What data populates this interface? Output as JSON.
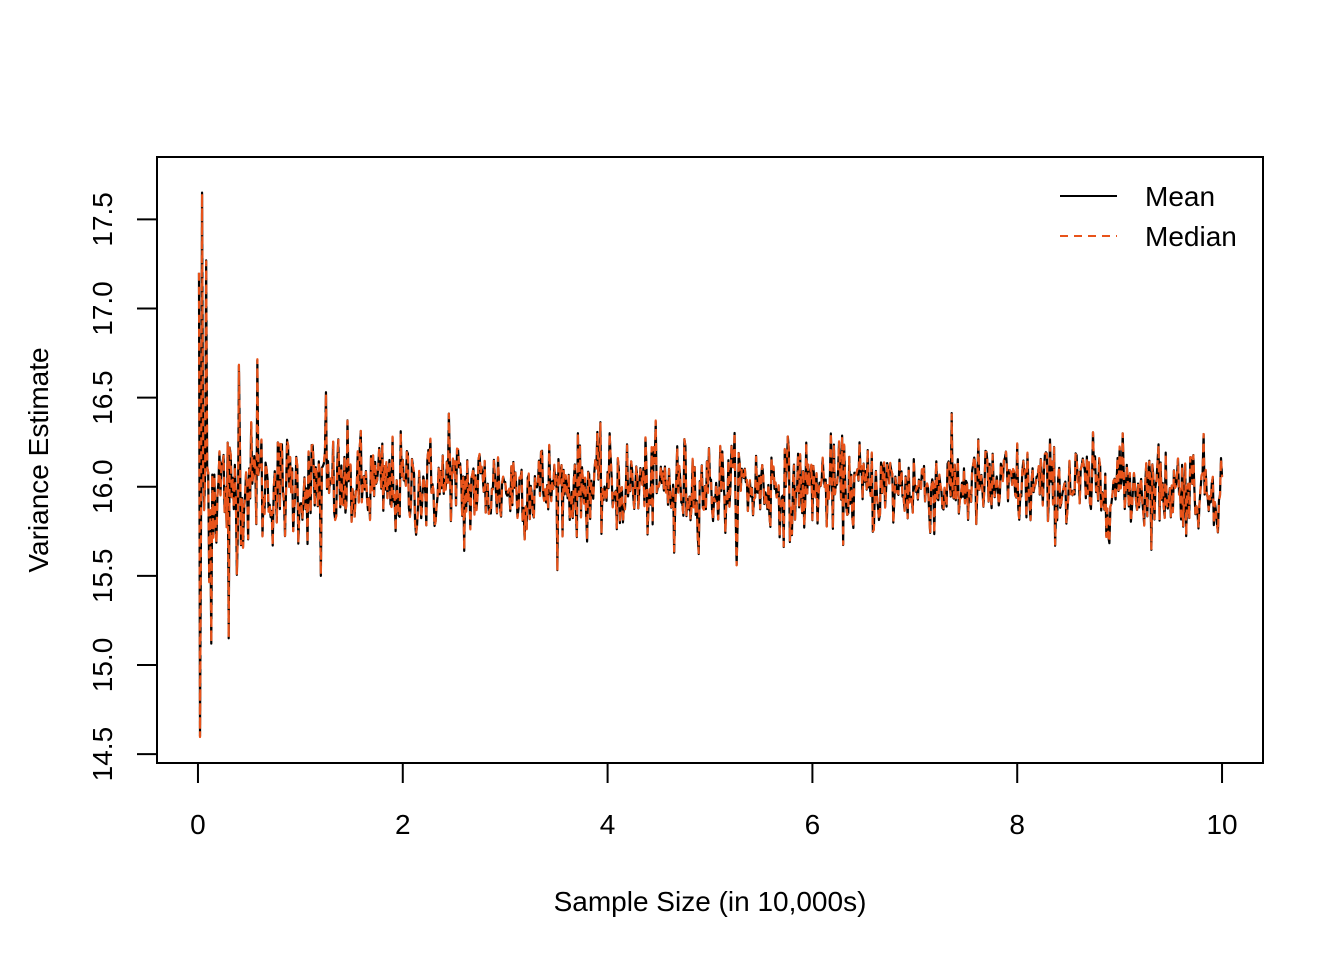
{
  "chart_data": {
    "type": "line",
    "title": "",
    "xlabel": "Sample Size (in 10,000s)",
    "ylabel": "Variance Estimate",
    "xlim": [
      -0.4,
      10.4
    ],
    "ylim": [
      14.45,
      17.85
    ],
    "x_ticks": [
      0,
      2,
      4,
      6,
      8,
      10
    ],
    "x_tick_labels": [
      "0",
      "2",
      "4",
      "6",
      "8",
      "10"
    ],
    "y_ticks": [
      14.5,
      15.0,
      15.5,
      16.0,
      16.5,
      17.0,
      17.5
    ],
    "y_tick_labels": [
      "14.5",
      "15.0",
      "15.5",
      "16.0",
      "16.5",
      "17.0",
      "17.5"
    ],
    "grid": false,
    "legend_position": "top-right",
    "center_value": 16.0,
    "x_range": [
      0.01,
      10
    ],
    "peak_points": [
      {
        "x": 0.01,
        "y": 17.2
      },
      {
        "x": 0.02,
        "y": 14.6
      },
      {
        "x": 0.04,
        "y": 17.65
      },
      {
        "x": 0.08,
        "y": 17.27
      },
      {
        "x": 0.13,
        "y": 15.12
      },
      {
        "x": 0.3,
        "y": 15.15
      },
      {
        "x": 0.4,
        "y": 16.68
      },
      {
        "x": 0.58,
        "y": 16.71
      },
      {
        "x": 1.2,
        "y": 15.5
      },
      {
        "x": 1.25,
        "y": 16.53
      },
      {
        "x": 2.45,
        "y": 16.41
      },
      {
        "x": 2.6,
        "y": 15.64
      },
      {
        "x": 4.65,
        "y": 15.63
      },
      {
        "x": 5.78,
        "y": 15.69
      },
      {
        "x": 9.0,
        "y": 16.22
      }
    ],
    "series": [
      {
        "name": "Mean",
        "color": "#000000",
        "dash": "solid"
      },
      {
        "name": "Median",
        "color": "#E8531A",
        "dash": "dashed"
      }
    ]
  }
}
